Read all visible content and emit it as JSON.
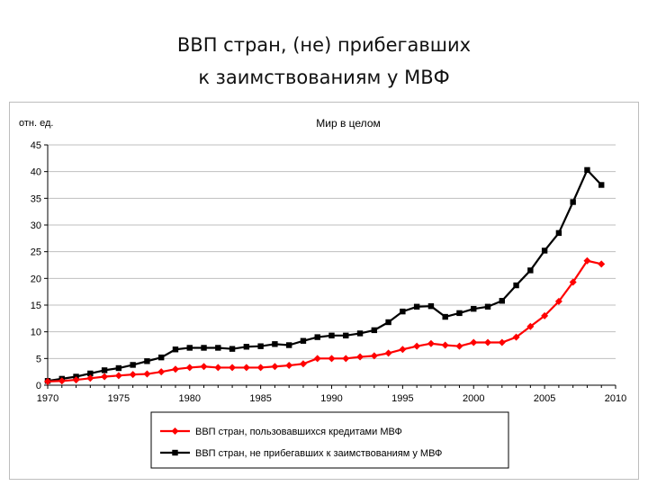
{
  "slide": {
    "title_line1": "ВВП стран, (не) прибегавших",
    "title_line2": "к заимствованиям у МВФ"
  },
  "chart_data": {
    "type": "line",
    "title": "Мир в целом",
    "ylabel": "отн. ед.",
    "xlabel": "",
    "xlim": [
      1970,
      2010
    ],
    "ylim": [
      0,
      45
    ],
    "x_ticks": [
      "1970",
      "1975",
      "1980",
      "1985",
      "1990",
      "1995",
      "2000",
      "2005",
      "2010"
    ],
    "y_ticks": [
      "0",
      "5",
      "10",
      "15",
      "20",
      "25",
      "30",
      "35",
      "40",
      "45"
    ],
    "grid": "horizontal",
    "legend_position": "bottom",
    "x": [
      1970,
      1971,
      1972,
      1973,
      1974,
      1975,
      1976,
      1977,
      1978,
      1979,
      1980,
      1981,
      1982,
      1983,
      1984,
      1985,
      1986,
      1987,
      1988,
      1989,
      1990,
      1991,
      1992,
      1993,
      1994,
      1995,
      1996,
      1997,
      1998,
      1999,
      2000,
      2001,
      2002,
      2003,
      2004,
      2005,
      2006,
      2007,
      2008,
      2009
    ],
    "series": [
      {
        "name": "ВВП стран, пользовавшихся кредитами МВФ",
        "color": "#ff0000",
        "marker": "diamond",
        "values": [
          0.7,
          0.8,
          1.0,
          1.3,
          1.6,
          1.8,
          2.0,
          2.1,
          2.5,
          3.0,
          3.3,
          3.5,
          3.3,
          3.3,
          3.3,
          3.3,
          3.5,
          3.7,
          4.0,
          5.0,
          5.0,
          5.0,
          5.3,
          5.5,
          6.0,
          6.7,
          7.3,
          7.8,
          7.5,
          7.3,
          8.0,
          8.0,
          8.0,
          9.0,
          11.0,
          13.0,
          15.7,
          19.3,
          23.3,
          22.7
        ]
      },
      {
        "name": "ВВП стран, не прибегавших к заимствованиям у МВФ",
        "color": "#000000",
        "marker": "square",
        "values": [
          0.8,
          1.2,
          1.6,
          2.2,
          2.8,
          3.2,
          3.8,
          4.5,
          5.2,
          6.7,
          7.0,
          7.0,
          7.0,
          6.8,
          7.2,
          7.3,
          7.7,
          7.5,
          8.3,
          9.0,
          9.3,
          9.3,
          9.7,
          10.3,
          11.8,
          13.8,
          14.7,
          14.8,
          12.8,
          13.5,
          14.3,
          14.7,
          15.8,
          18.7,
          21.5,
          25.2,
          28.5,
          34.3,
          40.3,
          37.5
        ]
      }
    ]
  }
}
